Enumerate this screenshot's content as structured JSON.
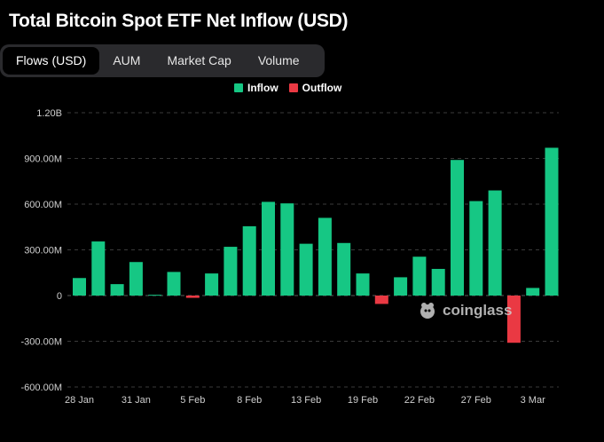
{
  "title": "Total Bitcoin Spot ETF Net Inflow (USD)",
  "tabs": [
    {
      "label": "Flows (USD)",
      "active": true
    },
    {
      "label": "AUM",
      "active": false
    },
    {
      "label": "Market Cap",
      "active": false
    },
    {
      "label": "Volume",
      "active": false
    }
  ],
  "legend": {
    "inflow_label": "Inflow",
    "outflow_label": "Outflow",
    "inflow_color": "#16c784",
    "outflow_color": "#ea3943"
  },
  "watermark": "coinglass",
  "chart_data": {
    "type": "bar",
    "title": "Total Bitcoin Spot ETF Net Inflow (USD)",
    "ylim": [
      -600000000,
      1200000000
    ],
    "yticks": [
      1200000000,
      900000000,
      600000000,
      300000000,
      0,
      -300000000,
      -600000000
    ],
    "ytick_labels": [
      "1.20B",
      "900.00M",
      "600.00M",
      "300.00M",
      "0",
      "-300.00M",
      "-600.00M"
    ],
    "xtick_labels": [
      {
        "index": 0,
        "label": "28 Jan"
      },
      {
        "index": 3,
        "label": "31 Jan"
      },
      {
        "index": 6,
        "label": "5 Feb"
      },
      {
        "index": 9,
        "label": "8 Feb"
      },
      {
        "index": 12,
        "label": "13 Feb"
      },
      {
        "index": 15,
        "label": "19 Feb"
      },
      {
        "index": 18,
        "label": "22 Feb"
      },
      {
        "index": 21,
        "label": "27 Feb"
      },
      {
        "index": 24,
        "label": "3 Mar"
      }
    ],
    "values": [
      115000000,
      355000000,
      75000000,
      220000000,
      5000000,
      155000000,
      -15000000,
      145000000,
      320000000,
      455000000,
      615000000,
      605000000,
      340000000,
      510000000,
      345000000,
      145000000,
      -55000000,
      120000000,
      255000000,
      175000000,
      890000000,
      620000000,
      690000000,
      -310000000,
      50000000,
      970000000
    ],
    "grid": true,
    "legend_position": "top-center"
  }
}
